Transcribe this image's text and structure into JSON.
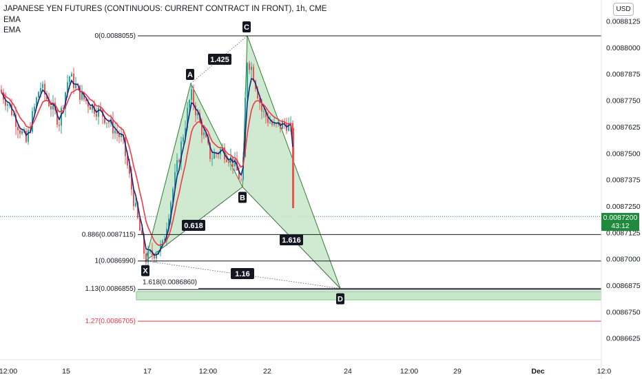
{
  "header": {
    "title": "JAPANESE YEN FUTURES (CONTINUOUS: CURRENT CONTRACT IN FRONT), 1h, CME",
    "indicators": [
      "EMA",
      "EMA"
    ],
    "currency_button": "USD"
  },
  "price_tag": {
    "price": "0.0087200",
    "countdown": "43:12",
    "color": "#1f8a3e"
  },
  "chart_data": {
    "type": "candlestick",
    "symbol": "JAPANESE YEN FUTURES (CONTINUOUS: CURRENT CONTRACT IN FRONT)",
    "timeframe": "1h",
    "exchange": "CME",
    "ylim": [
      0.00865,
      0.00882
    ],
    "y_ticks": [
      "0.0088125",
      "0.0088000",
      "0.0087875",
      "0.0087750",
      "0.0087625",
      "0.0087500",
      "0.0087375",
      "0.0087250",
      "0.0087125",
      "0.0087000",
      "0.0086875",
      "0.0086750",
      "0.0086625"
    ],
    "x_ticks": [
      "12:00",
      "15",
      "17",
      "12:00",
      "22",
      "24",
      "12:00",
      "29",
      "Dec",
      "12:0"
    ],
    "colors": {
      "up": "#26a69a",
      "down": "#ef5350",
      "ema_fast": "#1a237e",
      "ema_slow": "#f23645",
      "pattern_fill": "#c8e6c9"
    },
    "pattern": {
      "name": "bat",
      "points": [
        {
          "label": "X",
          "price": 0.008699
        },
        {
          "label": "A",
          "price": 0.008783
        },
        {
          "label": "B",
          "price": 0.008734
        },
        {
          "label": "C",
          "price": 0.0088055
        },
        {
          "label": "D",
          "price": 0.008686
        }
      ],
      "ratios": {
        "AC": "1.425",
        "XB": "0.618",
        "BD": "1.616",
        "XD": "1.16"
      }
    },
    "fib_levels": [
      {
        "label": "0(0.0088055)",
        "price": 0.0088055,
        "color": "#131722"
      },
      {
        "label": "0.886(0.0087115)",
        "price": 0.0087115,
        "color": "#131722"
      },
      {
        "label": "1(0.0086990)",
        "price": 0.008699,
        "color": "#131722"
      },
      {
        "label": "1.13(0.0086855)",
        "price": 0.0086855,
        "color": "#131722"
      },
      {
        "label": "1.618(0.0086860)",
        "price": 0.008686,
        "color": "#131722"
      },
      {
        "label": "1.27(0.0086705)",
        "price": 0.0086705,
        "color": "#f23645"
      }
    ],
    "last_price": 0.00872
  }
}
